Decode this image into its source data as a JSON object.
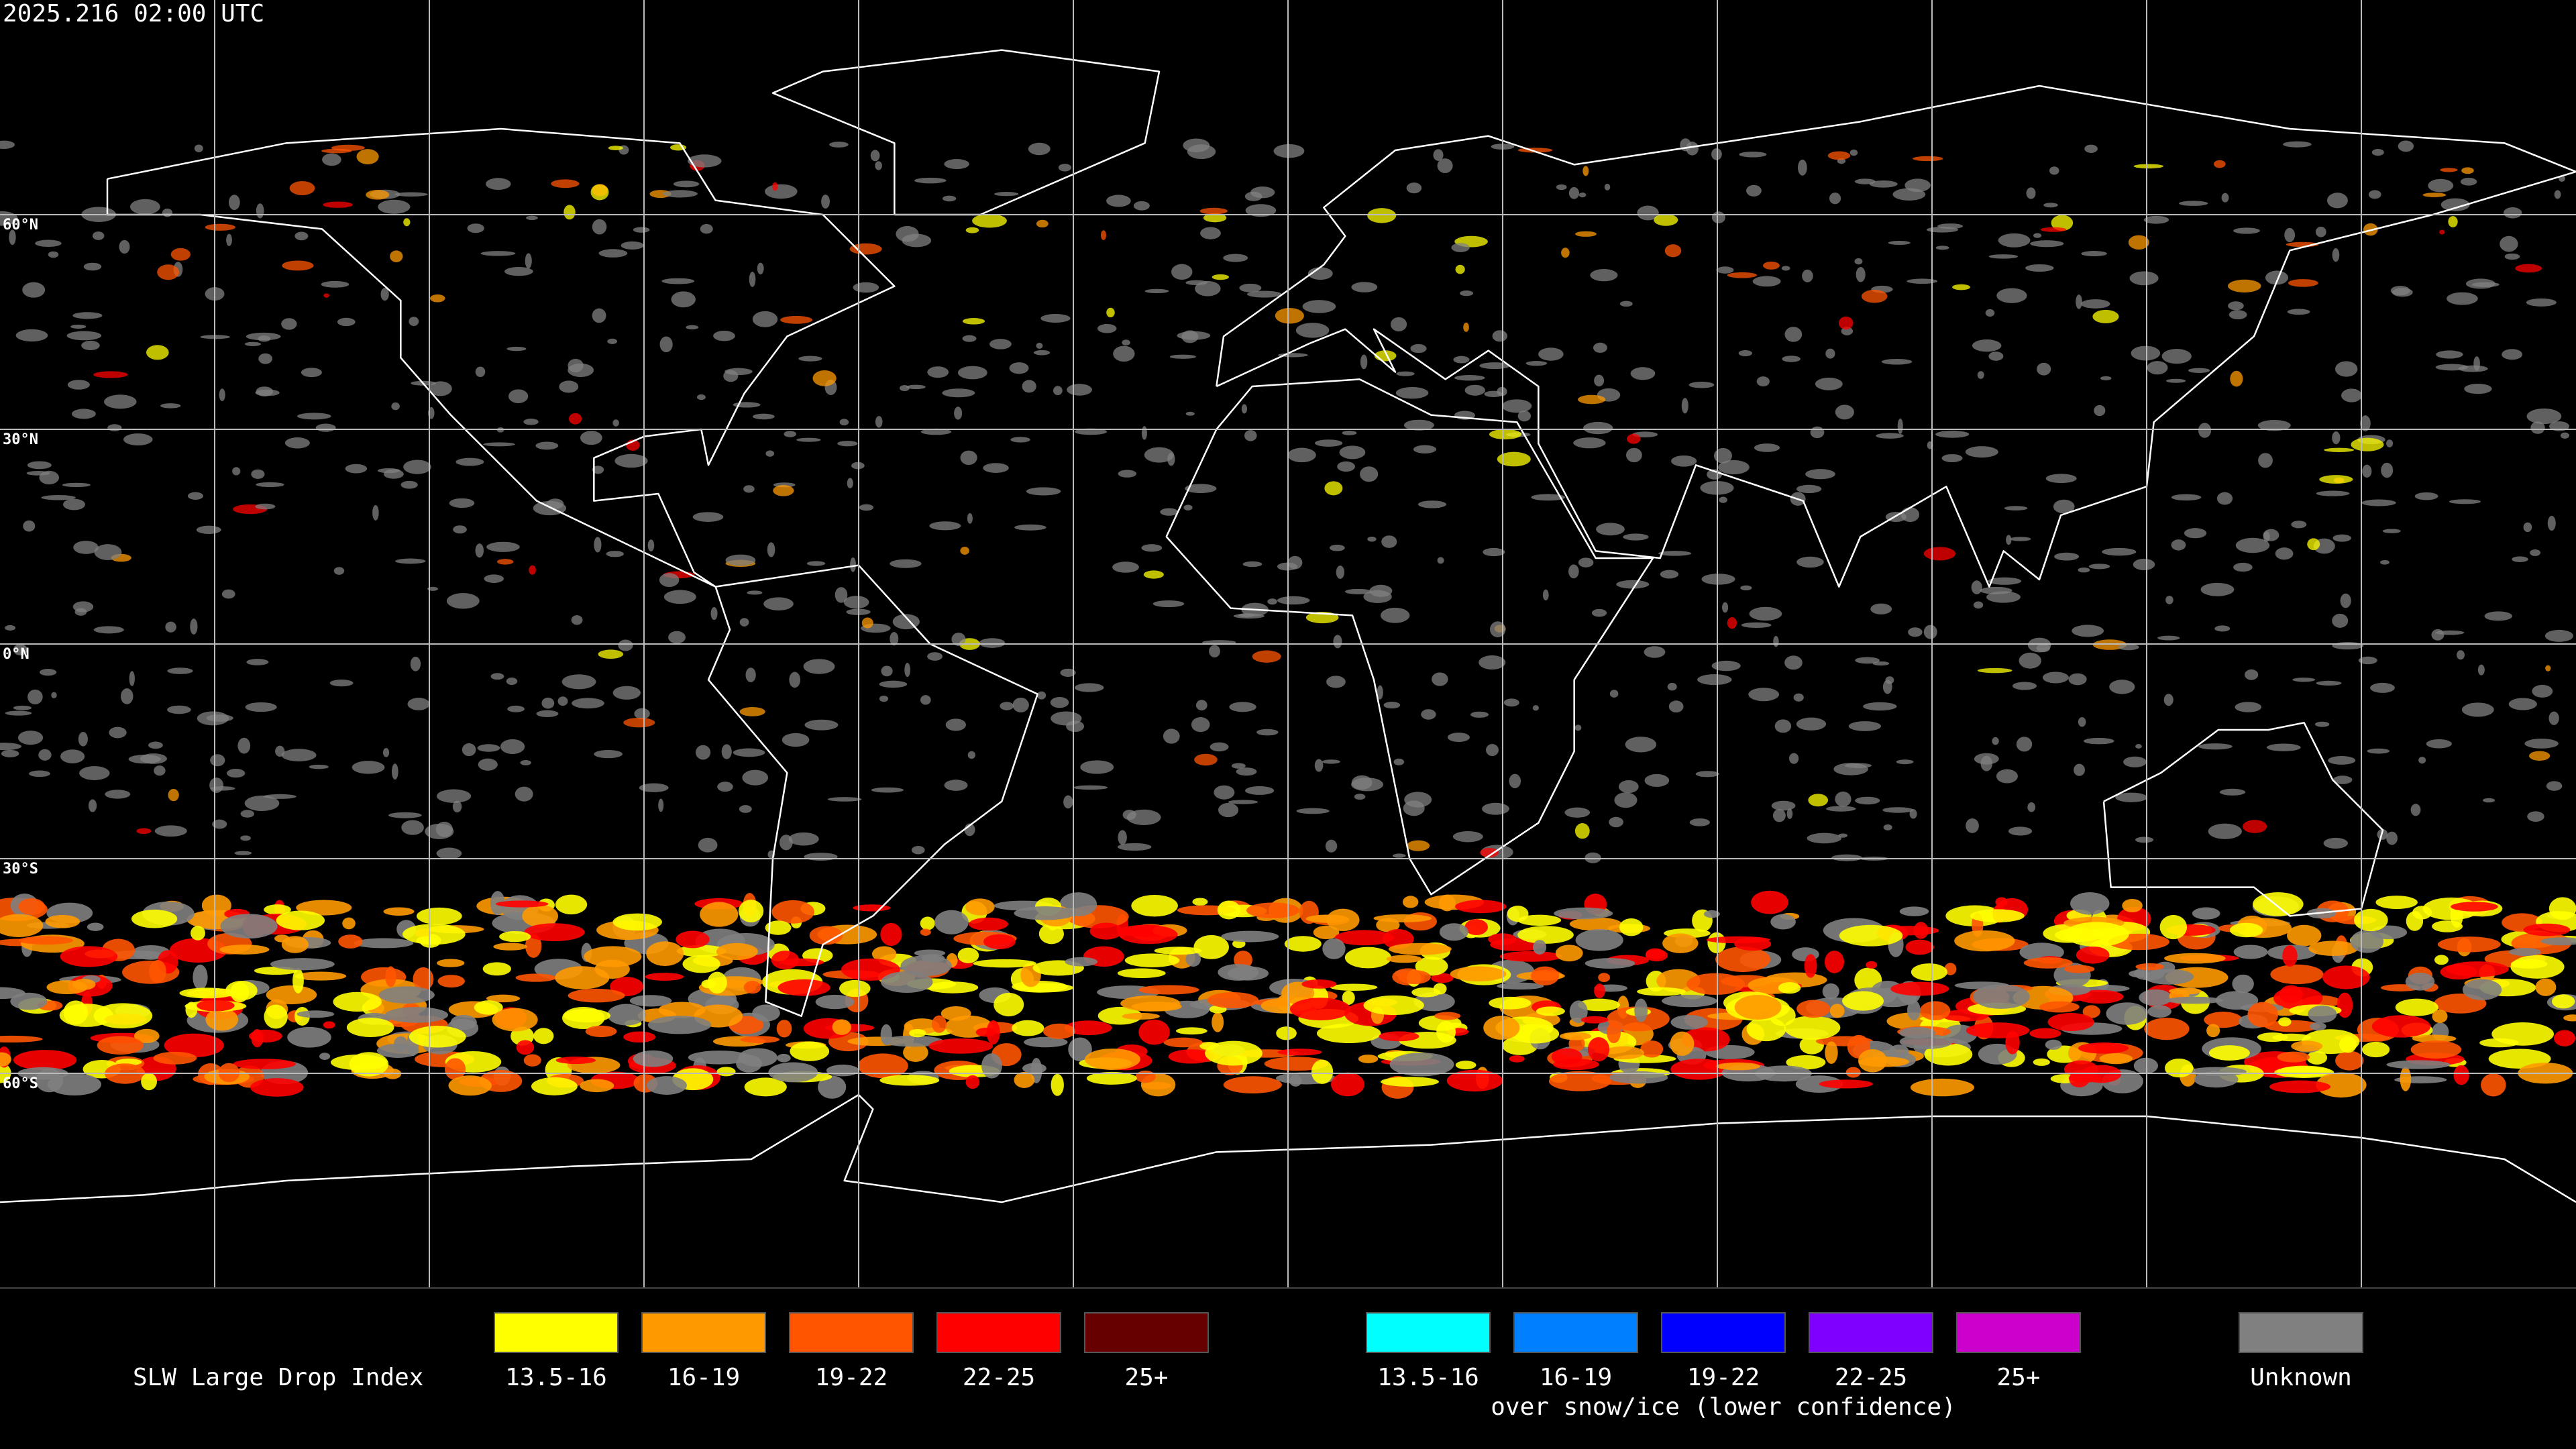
{
  "header": {
    "timestamp": "2025.216 02:00 UTC"
  },
  "map": {
    "latitude_labels": [
      "60°N",
      "30°N",
      "0°N",
      "30°S",
      "60°S"
    ]
  },
  "legend": {
    "title": "SLW Large Drop Index",
    "groups": [
      {
        "items": [
          {
            "label": "13.5-16",
            "color": "#ffff00"
          },
          {
            "label": "16-19",
            "color": "#ff9900"
          },
          {
            "label": "19-22",
            "color": "#ff5500"
          },
          {
            "label": "22-25",
            "color": "#ff0000"
          },
          {
            "label": "25+",
            "color": "#660000"
          }
        ]
      },
      {
        "items": [
          {
            "label": "13.5-16",
            "color": "#00ffff"
          },
          {
            "label": "16-19",
            "color": "#0080ff"
          },
          {
            "label": "19-22",
            "color": "#0000ff"
          },
          {
            "label": "22-25",
            "color": "#8000ff"
          },
          {
            "label": "25+",
            "color": "#cc00cc"
          }
        ],
        "caption": "over snow/ice (lower confidence)"
      }
    ],
    "unknown": {
      "label": "Unknown",
      "color": "#808080"
    }
  }
}
